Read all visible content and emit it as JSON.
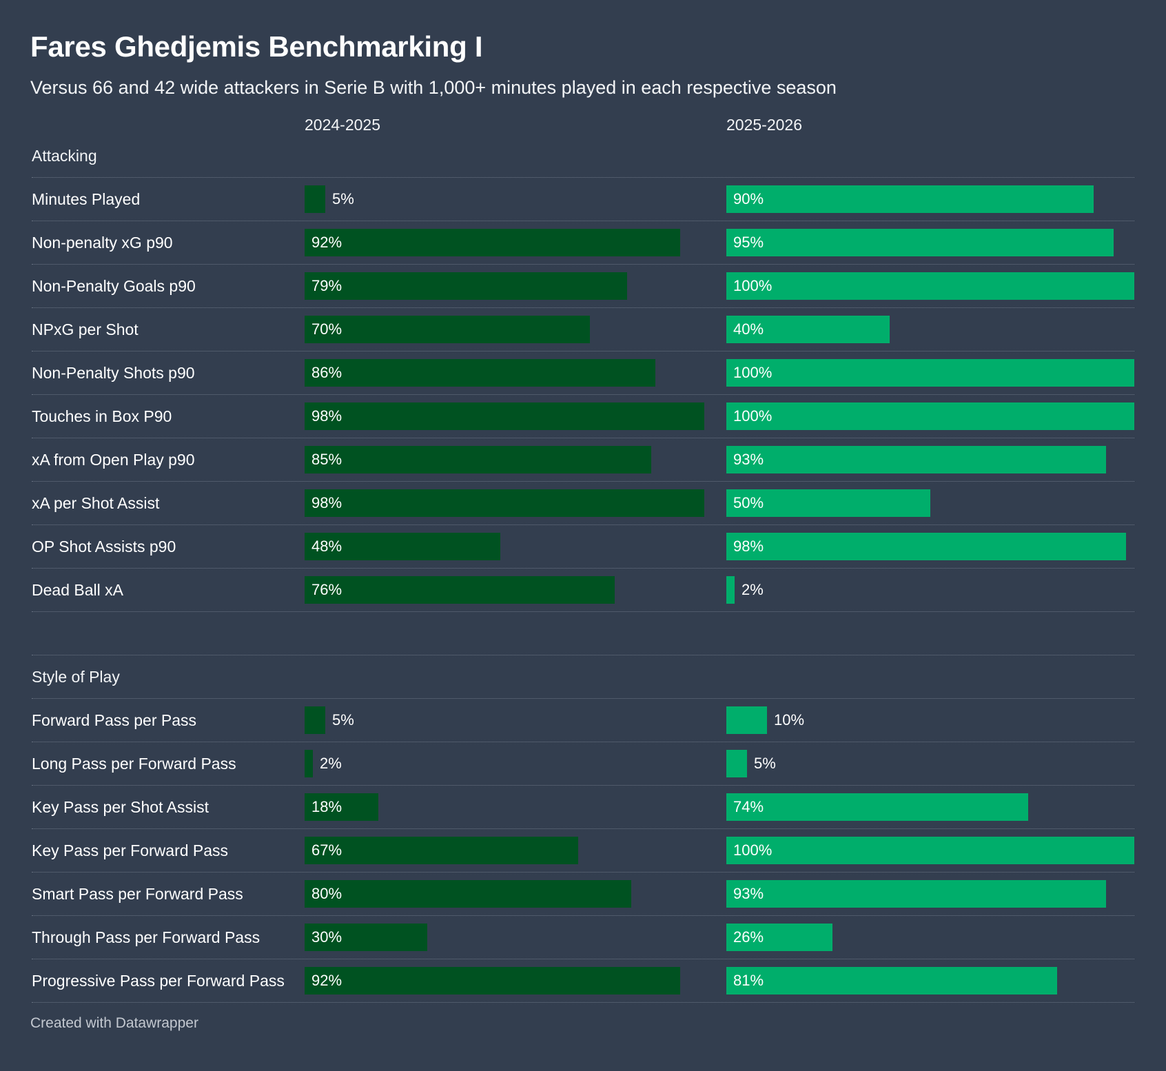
{
  "title": "Fares Ghedjemis Benchmarking I",
  "subtitle": "Versus 66 and 42 wide attackers in Serie B with 1,000+ minutes played in each respective season",
  "footer": "Created with Datawrapper",
  "colors": {
    "background": "#333e4f",
    "season_1": "#005221",
    "season_2": "#00ae6b"
  },
  "chart_data": {
    "type": "bar",
    "title": "Fares Ghedjemis Benchmarking I",
    "subtitle": "Versus 66 and 42 wide attackers in Serie B with 1,000+ minutes played in each respective season",
    "xlim": [
      0,
      100
    ],
    "unit": "%",
    "grid": false,
    "columns": [
      "2024-2025",
      "2025-2026"
    ],
    "sections": [
      {
        "name": "Attacking",
        "rows": [
          {
            "label": "Minutes Played",
            "values": [
              5,
              90
            ]
          },
          {
            "label": "Non-penalty xG p90",
            "values": [
              92,
              95
            ]
          },
          {
            "label": "Non-Penalty Goals p90",
            "values": [
              79,
              100
            ]
          },
          {
            "label": "NPxG per Shot",
            "values": [
              70,
              40
            ]
          },
          {
            "label": "Non-Penalty Shots p90",
            "values": [
              86,
              100
            ]
          },
          {
            "label": "Touches in Box P90",
            "values": [
              98,
              100
            ]
          },
          {
            "label": "xA from Open Play p90",
            "values": [
              85,
              93
            ]
          },
          {
            "label": "xA per Shot Assist",
            "values": [
              98,
              50
            ]
          },
          {
            "label": "OP Shot Assists p90",
            "values": [
              48,
              98
            ]
          },
          {
            "label": "Dead Ball xA",
            "values": [
              76,
              2
            ]
          }
        ]
      },
      {
        "name": "Style of Play",
        "rows": [
          {
            "label": "Forward Pass per Pass",
            "values": [
              5,
              10
            ]
          },
          {
            "label": "Long Pass per Forward Pass",
            "values": [
              2,
              5
            ]
          },
          {
            "label": "Key Pass per Shot Assist",
            "values": [
              18,
              74
            ]
          },
          {
            "label": "Key Pass per Forward Pass",
            "values": [
              67,
              100
            ]
          },
          {
            "label": "Smart Pass per Forward Pass",
            "values": [
              80,
              93
            ]
          },
          {
            "label": "Through Pass per Forward Pass",
            "values": [
              30,
              26
            ]
          },
          {
            "label": "Progressive Pass per Forward Pass",
            "values": [
              92,
              81
            ]
          }
        ]
      }
    ]
  }
}
